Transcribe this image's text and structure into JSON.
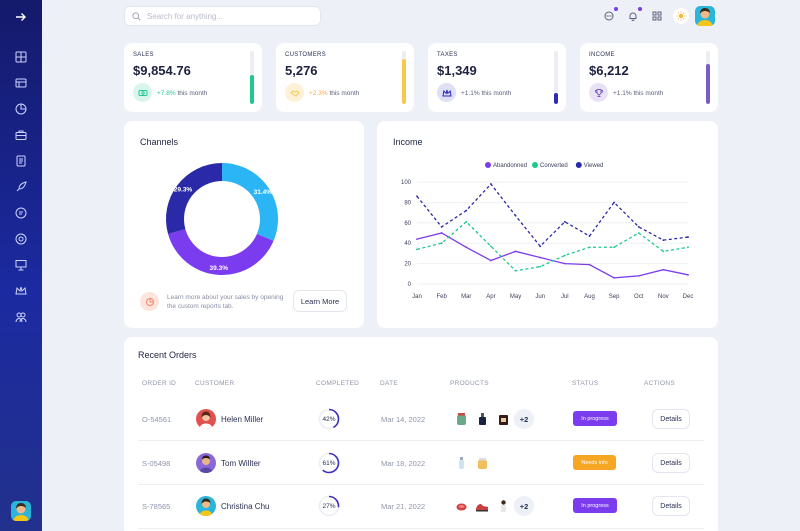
{
  "search": {
    "placeholder": "Search for anything..."
  },
  "stats": [
    {
      "label": "SALES",
      "value": "$9,854.76",
      "delta": "+7.8%",
      "delta_suffix": "this month",
      "level": 0.55,
      "color": "#1ec98c",
      "icon": "money-icon",
      "icon_bg": "#daf6ec"
    },
    {
      "label": "CUSTOMERS",
      "value": "5,276",
      "delta": "+2.3%",
      "delta_suffix": "this month",
      "level": 0.85,
      "color": "#f9c74f",
      "icon": "handshake-icon",
      "icon_bg": "#fdf1d7"
    },
    {
      "label": "TAXES",
      "value": "$1,349",
      "delta": "+1.1%",
      "delta_suffix": "this month",
      "level": 0.2,
      "color": "#2e2ab8",
      "icon": "crown-icon",
      "icon_bg": "#dfdff5"
    },
    {
      "label": "INCOME",
      "value": "$6,212",
      "delta": "+1.1%",
      "delta_suffix": "this month",
      "level": 0.75,
      "color": "#7b5cc4",
      "icon": "trophy-icon",
      "icon_bg": "#e8e2f5"
    }
  ],
  "channels": {
    "title": "Channels",
    "promo_text": "Learn more about your sales by opening the custom reports tab.",
    "promo_button": "Learn More"
  },
  "income": {
    "title": "Income"
  },
  "chart_data": [
    {
      "type": "pie",
      "title": "Channels",
      "slices": [
        {
          "label": "31.4%",
          "value": 31.4,
          "color": "#2bb5f5"
        },
        {
          "label": "39.3%",
          "value": 39.3,
          "color": "#7b3cf0"
        },
        {
          "label": "29.3%",
          "value": 29.3,
          "color": "#2a2aa8"
        }
      ]
    },
    {
      "type": "line",
      "title": "Income",
      "categories": [
        "Jan",
        "Feb",
        "Mar",
        "Apr",
        "May",
        "Jun",
        "Jul",
        "Aug",
        "Sep",
        "Oct",
        "Nov",
        "Dec"
      ],
      "ylim": [
        0,
        100
      ],
      "yticks": [
        0,
        20,
        40,
        60,
        80,
        100
      ],
      "grid": true,
      "legend": "top",
      "series": [
        {
          "name": "Abandonned",
          "color": "#7b3cf0",
          "dash": false,
          "values": [
            44,
            50,
            36,
            23,
            32,
            26,
            20,
            19,
            6,
            8,
            14,
            9
          ]
        },
        {
          "name": "Converted",
          "color": "#1ec98c",
          "dash": true,
          "values": [
            34,
            40,
            61,
            37,
            13,
            17,
            28,
            36,
            36,
            50,
            32,
            36
          ]
        },
        {
          "name": "Viewed",
          "color": "#2a2aa8",
          "dash": true,
          "values": [
            86,
            56,
            72,
            98,
            67,
            37,
            61,
            47,
            80,
            56,
            43,
            46
          ]
        }
      ]
    }
  ],
  "orders": {
    "title": "Recent Orders",
    "headers": [
      "ORDER ID",
      "CUSTOMER",
      "COMPLETED",
      "DATE",
      "PRODUCTS",
      "STATUS",
      "ACTIONS"
    ],
    "rows": [
      {
        "id": "O-54561",
        "name": "Helen Miller",
        "completed": "42%",
        "level": 0.42,
        "date": "Mar 14, 2022",
        "more": "+2",
        "status": "In progress",
        "status_color": "#7b3cf0",
        "action": "Details",
        "avatar_color": "#e0524f"
      },
      {
        "id": "S-05498",
        "name": "Tom Willter",
        "completed": "61%",
        "level": 0.61,
        "date": "Mar 18, 2022",
        "more": "",
        "status": "Needs info",
        "status_color": "#f5a623",
        "action": "Details",
        "avatar_color": "#8a68d8"
      },
      {
        "id": "S-78565",
        "name": "Christina Chu",
        "completed": "27%",
        "level": 0.27,
        "date": "Mar 21, 2022",
        "more": "+2",
        "status": "In progress",
        "status_color": "#7b3cf0",
        "action": "Details",
        "avatar_color": "#2bb5d8"
      }
    ]
  }
}
